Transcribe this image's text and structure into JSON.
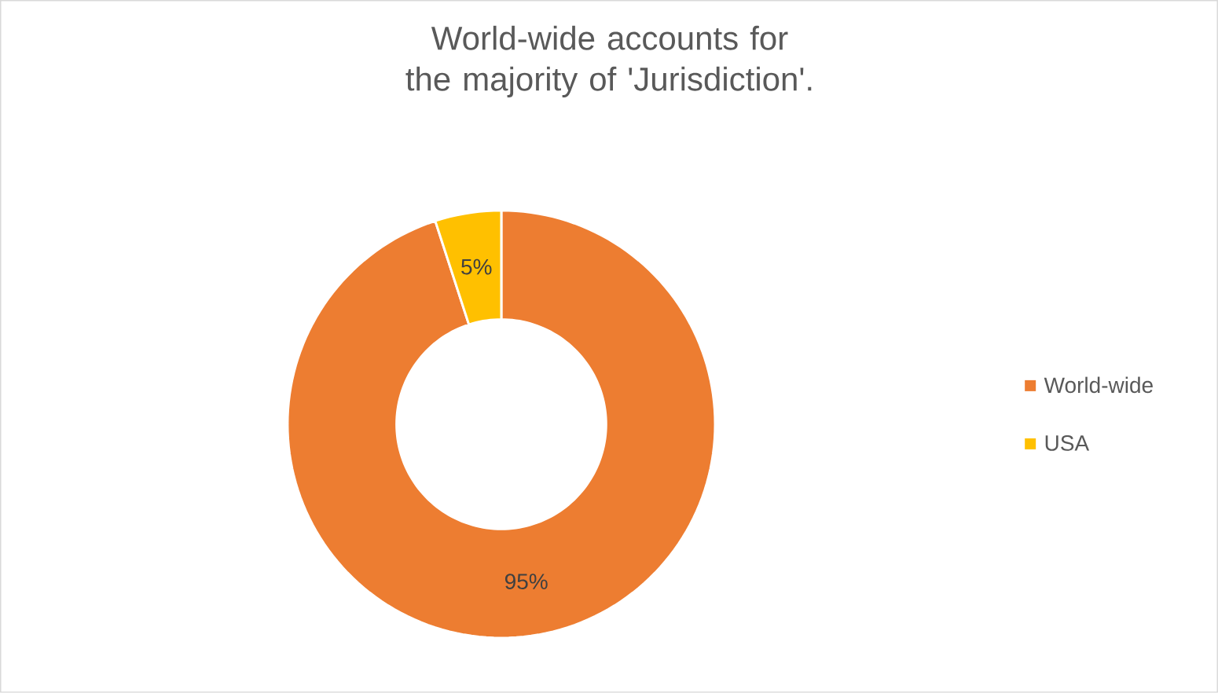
{
  "chart_data": {
    "type": "donut",
    "title": "World-wide accounts for the majority of 'Jurisdiction'.",
    "categories": [
      "World-wide",
      "USA"
    ],
    "values": [
      95,
      5
    ],
    "colors": [
      "#ed7d31",
      "#ffc000"
    ],
    "value_labels": [
      "95%",
      "5%"
    ],
    "legend": "right"
  }
}
